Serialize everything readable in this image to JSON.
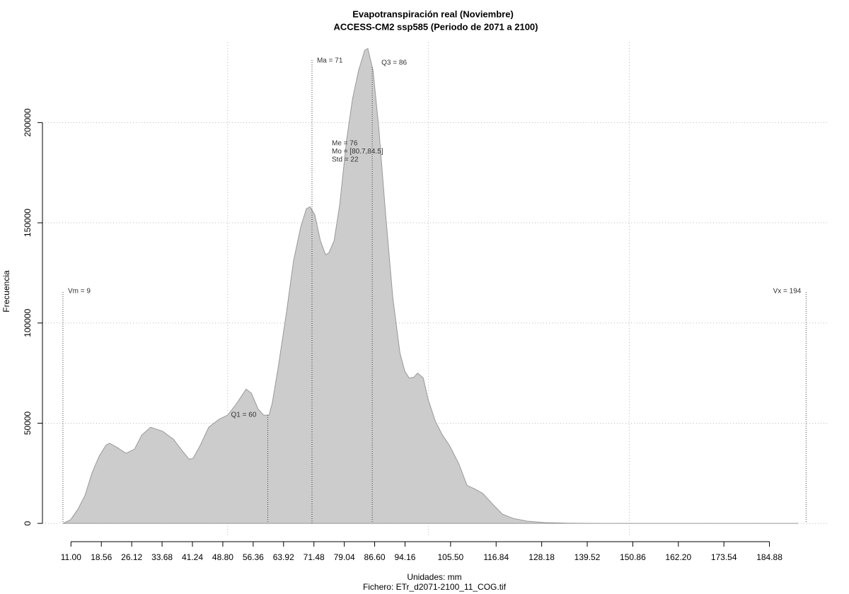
{
  "chart_data": {
    "type": "area",
    "title": "Evapotranspiración real (Noviembre)",
    "subtitle": "ACCESS-CM2 ssp585 (Periodo de 2071 a 2100)",
    "x_label": "Unidades: mm",
    "caption": "Fichero: ETr_d2071-2100_11_COG.tif",
    "y_label": "Frecuencia",
    "color": "#cccccc",
    "x": [
      9,
      10.9,
      12.7,
      14.5,
      16.2,
      18.0,
      19.7,
      20.6,
      22.4,
      24.7,
      26.8,
      28.6,
      30.8,
      33.8,
      36.5,
      38.8,
      40.4,
      41.4,
      43.2,
      45.3,
      47.9,
      50.0,
      52.3,
      54.6,
      55.9,
      57.6,
      59.0,
      60.3,
      61.1,
      62.6,
      64.7,
      66.4,
      68.2,
      69.6,
      70.5,
      71.7,
      73.1,
      74.4,
      75.2,
      76.5,
      77.9,
      79.6,
      81.1,
      82.6,
      84.1,
      84.9,
      86.2,
      87.6,
      89.3,
      91.1,
      92.9,
      94.1,
      95.2,
      96.4,
      97.3,
      98.7,
      99.9,
      101.7,
      103.5,
      105.2,
      107.5,
      109.6,
      111.7,
      113.5,
      115.8,
      118.4,
      121.1,
      124.6,
      129.0,
      135.1,
      143.1,
      169.5,
      192.0
    ],
    "values": [
      0,
      1800,
      7000,
      14000,
      25000,
      33500,
      39000,
      40000,
      38000,
      35000,
      37000,
      44000,
      48000,
      46000,
      42000,
      36000,
      32000,
      32500,
      39000,
      48000,
      52000,
      54000,
      60000,
      67000,
      65000,
      57000,
      54000,
      54000,
      60000,
      78000,
      106000,
      131000,
      148000,
      157000,
      158000,
      154000,
      141000,
      134000,
      135000,
      141000,
      159000,
      191000,
      212000,
      226000,
      236000,
      237000,
      226000,
      198000,
      155000,
      113000,
      85000,
      76000,
      72500,
      73000,
      75000,
      72500,
      62000,
      51000,
      44000,
      39000,
      30000,
      19000,
      17000,
      15000,
      10000,
      4600,
      2500,
      1100,
      400,
      100,
      30,
      5,
      0
    ],
    "xlim": [
      3.9,
      199.4
    ],
    "ylim": [
      -7000,
      240000
    ],
    "xticks": [
      {
        "value": 11,
        "label": "11.00"
      },
      18.56,
      26.12,
      33.68,
      41.24,
      {
        "value": 48.8,
        "label": "48.80"
      },
      56.36,
      63.92,
      71.48,
      79.04,
      {
        "value": 86.6,
        "label": "86.60"
      },
      94.16,
      {
        "value": 105.5,
        "label": "105.50"
      },
      116.84,
      128.18,
      139.52,
      150.86,
      {
        "value": 162.2,
        "label": "162.20"
      },
      173.54,
      184.88
    ],
    "yticks": [
      0,
      50000,
      100000,
      150000,
      200000
    ],
    "xgrid": [
      50,
      100,
      150
    ],
    "grid": true,
    "annotations": [
      {
        "label": "Vm = 9",
        "x": 9
      },
      {
        "label": "Q1 = 60",
        "x": 60
      },
      {
        "label": "Ma = 71",
        "x": 71
      },
      {
        "label": "Q3 = 86",
        "x": 86
      },
      {
        "label": "Vx = 194",
        "x": 194
      }
    ],
    "stats": [
      "Me = 76",
      "Mo = [80.7,84.5]",
      "Std = 22"
    ]
  }
}
